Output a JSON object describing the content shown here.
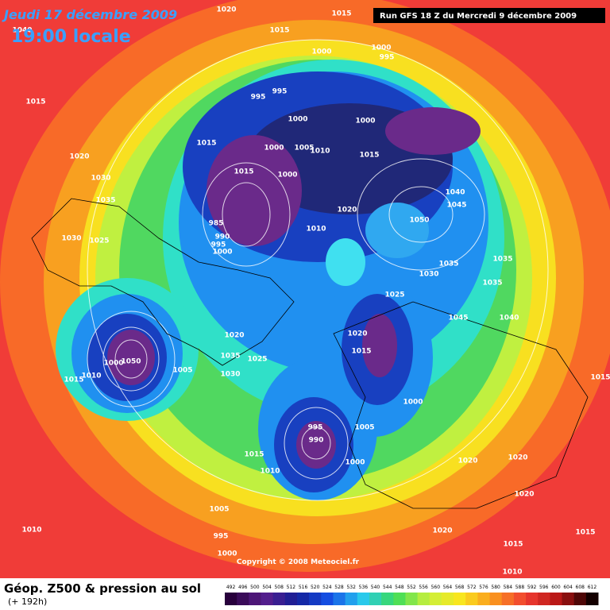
{
  "header": {
    "date": "Jeudi 17 décembre 2009",
    "time": "19:00 locale",
    "run": "Run GFS 18 Z du Mercredi 9 décembre 2009"
  },
  "copyright": "Copyright © 2008 Meteociel.fr",
  "footer": {
    "title": "Géop. Z500 & pression au sol",
    "lead": "(+ 192h)"
  },
  "scale": {
    "values": [
      492,
      496,
      500,
      504,
      508,
      512,
      516,
      520,
      524,
      528,
      532,
      536,
      540,
      544,
      548,
      552,
      556,
      560,
      564,
      568,
      572,
      576,
      580,
      584,
      588,
      592,
      596,
      600,
      604,
      608,
      612
    ]
  },
  "pressure_labels": [
    "1020",
    "1015",
    "1015",
    "1040",
    "1000",
    "1000",
    "995",
    "1015",
    "995",
    "995",
    "1000",
    "1000",
    "1015",
    "1000",
    "1005",
    "1010",
    "1015",
    "1020",
    "1015",
    "1000",
    "1030",
    "1035",
    "1040",
    "1045",
    "1020",
    "1050",
    "985",
    "990",
    "995",
    "1000",
    "1010",
    "1030",
    "1025",
    "1035",
    "1035",
    "1030",
    "1035",
    "1025",
    "1045",
    "1040",
    "1020",
    "1020",
    "1015",
    "1000",
    "1050",
    "1035",
    "1025",
    "1005",
    "1030",
    "1010",
    "1015",
    "1015",
    "1000",
    "995",
    "1005",
    "990",
    "1015",
    "1020",
    "1020",
    "1010",
    "1000",
    "1020",
    "1005",
    "1010",
    "1020",
    "1015",
    "995",
    "1015",
    "1000",
    "1010"
  ]
}
